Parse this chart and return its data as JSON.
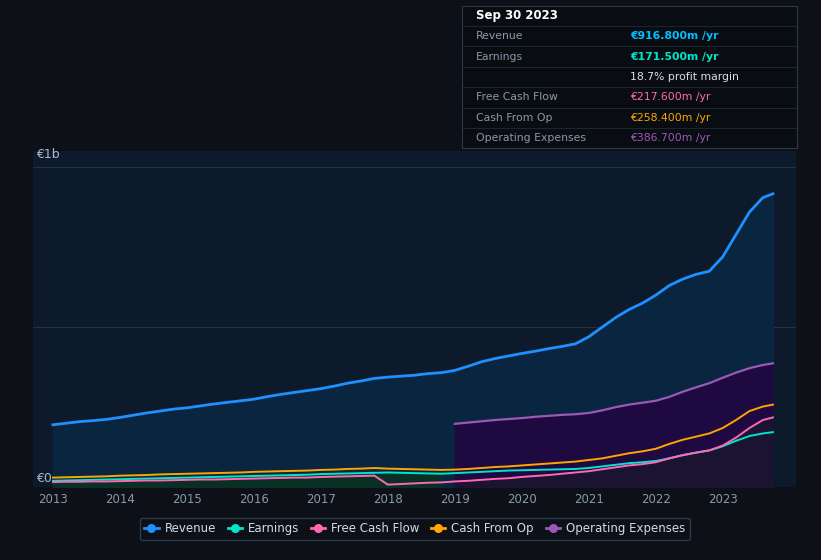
{
  "bg_color": "#0d1117",
  "chart_bg": "#0d1a2b",
  "tooltip": {
    "Revenue": {
      "value": "€916.800m",
      "color": "#00bfff"
    },
    "Earnings": {
      "value": "€171.500m",
      "color": "#00e5cc"
    },
    "profit_margin": "18.7%",
    "Free Cash Flow": {
      "value": "€217.600m",
      "color": "#ff69b4"
    },
    "Cash From Op": {
      "value": "€258.400m",
      "color": "#ffa500"
    },
    "Operating Expenses": {
      "value": "€386.700m",
      "color": "#9b59b6"
    }
  },
  "ylabel_top": "€1b",
  "ylabel_bottom": "€0",
  "ylim": [
    0,
    1050
  ],
  "xlim_start": 2012.7,
  "xlim_end": 2024.1,
  "series": {
    "years": [
      2013.0,
      2013.2,
      2013.4,
      2013.6,
      2013.8,
      2014.0,
      2014.2,
      2014.4,
      2014.6,
      2014.8,
      2015.0,
      2015.2,
      2015.4,
      2015.6,
      2015.8,
      2016.0,
      2016.2,
      2016.4,
      2016.6,
      2016.8,
      2017.0,
      2017.2,
      2017.4,
      2017.6,
      2017.8,
      2018.0,
      2018.2,
      2018.4,
      2018.6,
      2018.8,
      2019.0,
      2019.2,
      2019.4,
      2019.6,
      2019.8,
      2020.0,
      2020.2,
      2020.4,
      2020.6,
      2020.8,
      2021.0,
      2021.2,
      2021.4,
      2021.6,
      2021.8,
      2022.0,
      2022.2,
      2022.4,
      2022.6,
      2022.8,
      2023.0,
      2023.2,
      2023.4,
      2023.6,
      2023.75
    ],
    "Revenue": [
      195,
      200,
      205,
      208,
      212,
      218,
      225,
      232,
      238,
      244,
      248,
      254,
      260,
      265,
      270,
      275,
      283,
      290,
      296,
      302,
      308,
      316,
      325,
      332,
      340,
      344,
      347,
      350,
      355,
      358,
      365,
      378,
      392,
      402,
      410,
      418,
      425,
      433,
      440,
      448,
      470,
      500,
      530,
      555,
      575,
      600,
      630,
      650,
      665,
      675,
      720,
      790,
      860,
      905,
      917
    ],
    "Earnings": [
      20,
      21,
      22,
      23,
      24,
      25,
      26,
      27,
      28,
      29,
      30,
      31,
      32,
      33,
      34,
      35,
      36,
      37,
      38,
      39,
      41,
      42,
      43,
      44,
      45,
      46,
      45,
      44,
      43,
      42,
      44,
      46,
      48,
      50,
      52,
      53,
      54,
      55,
      56,
      57,
      60,
      65,
      70,
      75,
      78,
      82,
      90,
      100,
      108,
      115,
      128,
      145,
      160,
      168,
      172
    ],
    "Free_Cash_Flow": [
      16,
      17,
      17,
      18,
      18,
      19,
      20,
      21,
      21,
      22,
      23,
      24,
      24,
      25,
      26,
      27,
      28,
      29,
      30,
      30,
      32,
      33,
      34,
      35,
      36,
      8,
      10,
      12,
      14,
      15,
      18,
      20,
      23,
      26,
      28,
      32,
      35,
      38,
      42,
      46,
      50,
      56,
      62,
      68,
      72,
      78,
      90,
      100,
      108,
      115,
      130,
      155,
      185,
      210,
      218
    ],
    "Cash_From_Op": [
      30,
      31,
      32,
      33,
      34,
      36,
      37,
      38,
      40,
      41,
      42,
      43,
      44,
      45,
      46,
      48,
      49,
      50,
      51,
      52,
      54,
      55,
      57,
      58,
      60,
      58,
      57,
      56,
      55,
      54,
      55,
      57,
      60,
      63,
      65,
      68,
      71,
      74,
      77,
      80,
      85,
      90,
      98,
      106,
      112,
      120,
      135,
      148,
      158,
      168,
      185,
      210,
      238,
      252,
      258
    ],
    "Operating_Expenses": [
      0,
      0,
      0,
      0,
      0,
      0,
      0,
      0,
      0,
      0,
      0,
      0,
      0,
      0,
      0,
      0,
      0,
      0,
      0,
      0,
      0,
      0,
      0,
      0,
      0,
      0,
      0,
      0,
      0,
      0,
      198,
      202,
      206,
      210,
      213,
      216,
      220,
      223,
      226,
      228,
      232,
      240,
      250,
      258,
      264,
      270,
      282,
      298,
      312,
      325,
      342,
      358,
      372,
      382,
      387
    ]
  },
  "colors": {
    "Revenue": "#1e90ff",
    "Earnings": "#00e5cc",
    "Free_Cash_Flow": "#ff69b4",
    "Cash_From_Op": "#ffa500",
    "Operating_Expenses": "#9b59b6"
  },
  "legend": [
    {
      "label": "Revenue",
      "color": "#1e90ff"
    },
    {
      "label": "Earnings",
      "color": "#00e5cc"
    },
    {
      "label": "Free Cash Flow",
      "color": "#ff69b4"
    },
    {
      "label": "Cash From Op",
      "color": "#ffa500"
    },
    {
      "label": "Operating Expenses",
      "color": "#9b59b6"
    }
  ]
}
